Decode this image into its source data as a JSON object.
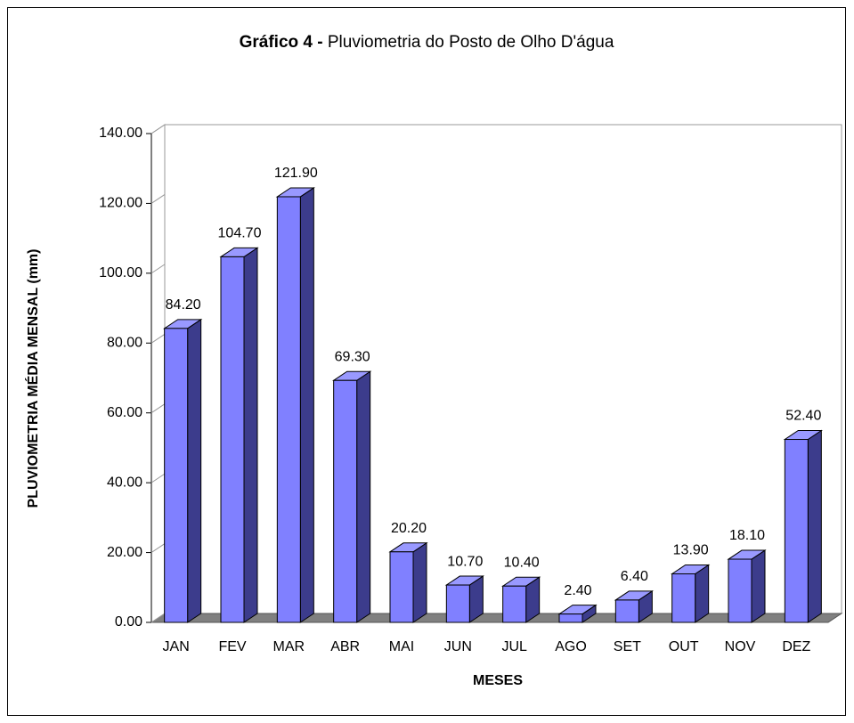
{
  "chart_data": {
    "type": "bar3d",
    "title_bold": "Gráfico 4 -",
    "title": "Pluviometria do Posto de Olho D'água",
    "x_label": "MESES",
    "y_label": "PLUVIOMETRIA MÉDIA MENSAL (mm)",
    "categories": [
      "JAN",
      "FEV",
      "MAR",
      "ABR",
      "MAI",
      "JUN",
      "JUL",
      "AGO",
      "SET",
      "OUT",
      "NOV",
      "DEZ"
    ],
    "values": [
      84.2,
      104.7,
      121.9,
      69.3,
      20.2,
      10.7,
      10.4,
      2.4,
      6.4,
      13.9,
      18.1,
      52.4
    ],
    "value_labels": [
      "84.20",
      "104.70",
      "121.90",
      "69.30",
      "20.20",
      "10.70",
      "10.40",
      "2.40",
      "6.40",
      "13.90",
      "18.10",
      "52.40"
    ],
    "color": "#8080ff",
    "ylim": [
      0,
      140
    ],
    "yticks": [
      {
        "value": 0,
        "label": "0.00"
      },
      {
        "value": 20,
        "label": "20.00"
      },
      {
        "value": 40,
        "label": "40.00"
      },
      {
        "value": 60,
        "label": "60.00"
      },
      {
        "value": 80,
        "label": "80.00"
      },
      {
        "value": 100,
        "label": "100.00"
      },
      {
        "value": 120,
        "label": "120.00"
      },
      {
        "value": 140,
        "label": "140.00"
      }
    ],
    "grid": false
  }
}
